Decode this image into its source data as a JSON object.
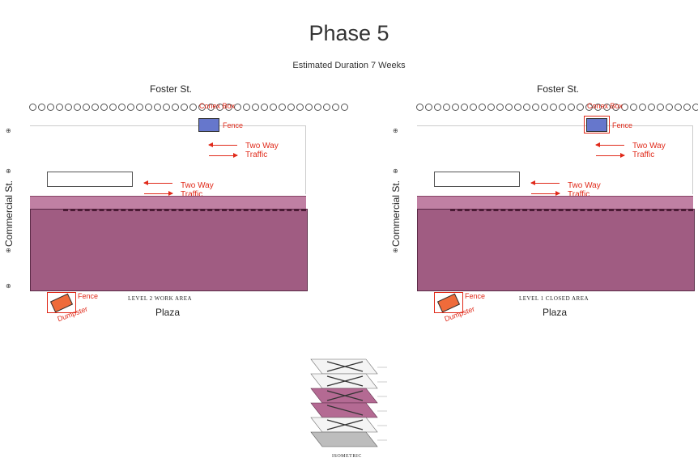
{
  "page": {
    "title": "Phase 5",
    "subtitle": "Estimated Duration 7 Weeks"
  },
  "plans": [
    {
      "top_street": "Foster St.",
      "left_street": "Commercial St.",
      "bottom_street": "Plaza",
      "level_caption": "LEVEL 2 WORK AREA",
      "conex_label": "Conex Box",
      "fence_label_top": "Fence",
      "fence_label_bottom": "Fence",
      "dumpster_label": "Dumpster",
      "traffic_label_1": "Two Way Traffic",
      "traffic_label_2": "Two Way Traffic"
    },
    {
      "top_street": "Foster St.",
      "left_street": "Commercial St.",
      "bottom_street": "Plaza",
      "level_caption": "LEVEL 1 CLOSED AREA",
      "conex_label": "Conex Box",
      "fence_label_top": "Fence",
      "fence_label_bottom": "Fence",
      "dumpster_label": "Dumpster",
      "traffic_label_1": "Two Way Traffic",
      "traffic_label_2": "Two Way Traffic"
    }
  ],
  "isometric": {
    "caption": "ISOMETRIC"
  },
  "colors": {
    "work_area": "#a05c82",
    "annotation_red": "#e02a1a",
    "conex_blue": "#6677cc",
    "dumpster_orange": "#ef6b3a"
  }
}
